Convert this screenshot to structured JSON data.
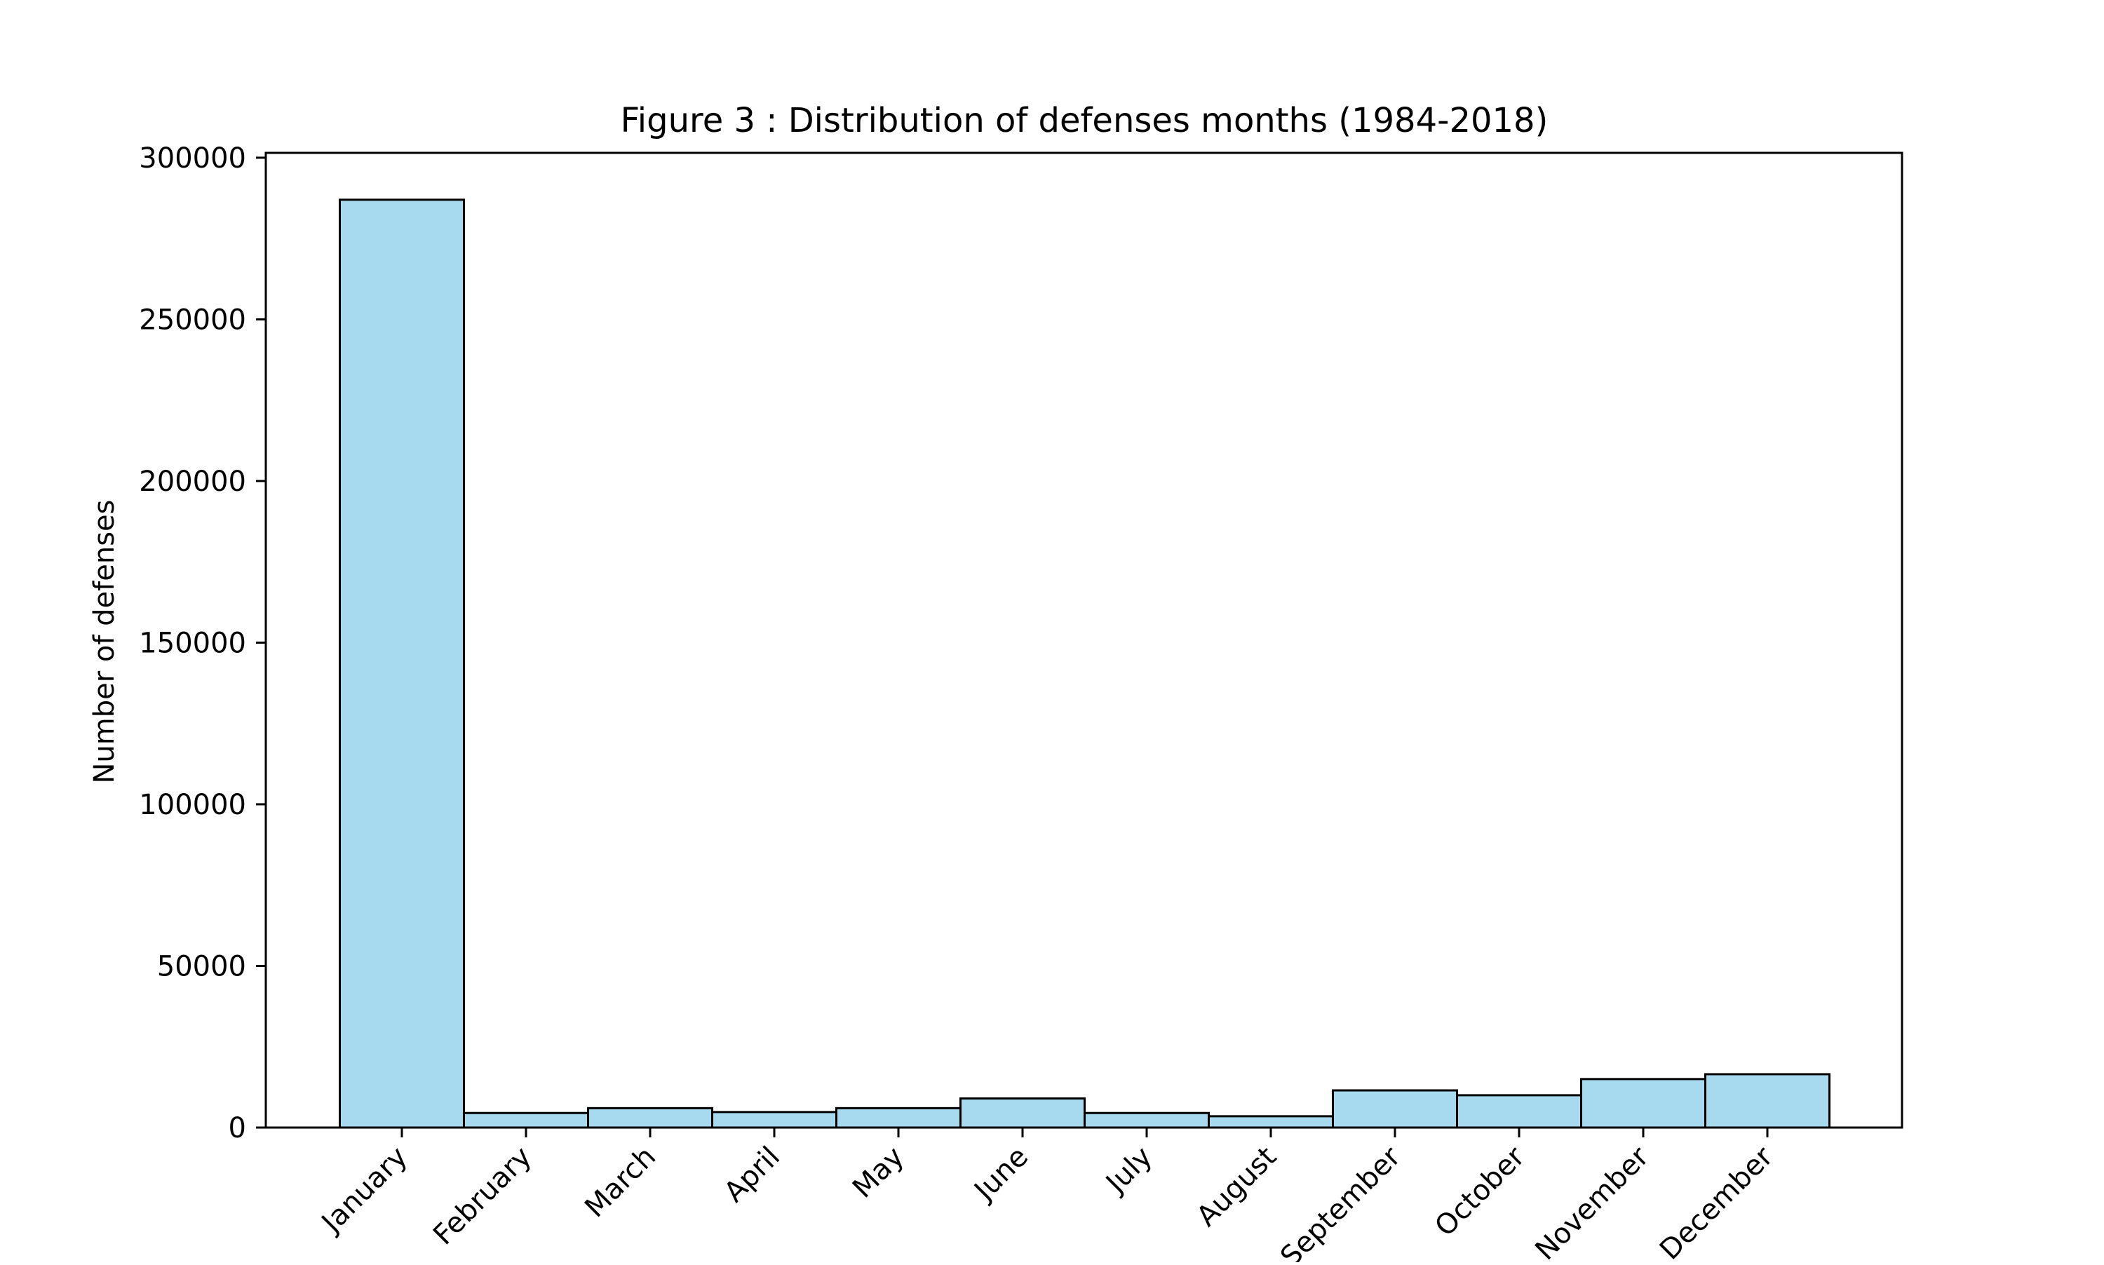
{
  "chart_data": {
    "type": "bar",
    "title": "Figure 3 : Distribution of defenses months (1984-2018)",
    "xlabel": "",
    "ylabel": "Number of defenses",
    "categories": [
      "January",
      "February",
      "March",
      "April",
      "May",
      "June",
      "July",
      "August",
      "September",
      "October",
      "November",
      "December"
    ],
    "values": [
      287000,
      4500,
      6000,
      4800,
      6000,
      9000,
      4500,
      3500,
      11500,
      10000,
      15000,
      16500
    ],
    "ylim": [
      0,
      301500
    ],
    "yticks": [
      0,
      50000,
      100000,
      150000,
      200000,
      250000,
      300000
    ],
    "ytick_labels": [
      "0",
      "50000",
      "100000",
      "150000",
      "200000",
      "250000",
      "300000"
    ],
    "bar_color": "#a8daef",
    "edge_color": "#000000",
    "grid": false,
    "legend": "none"
  }
}
